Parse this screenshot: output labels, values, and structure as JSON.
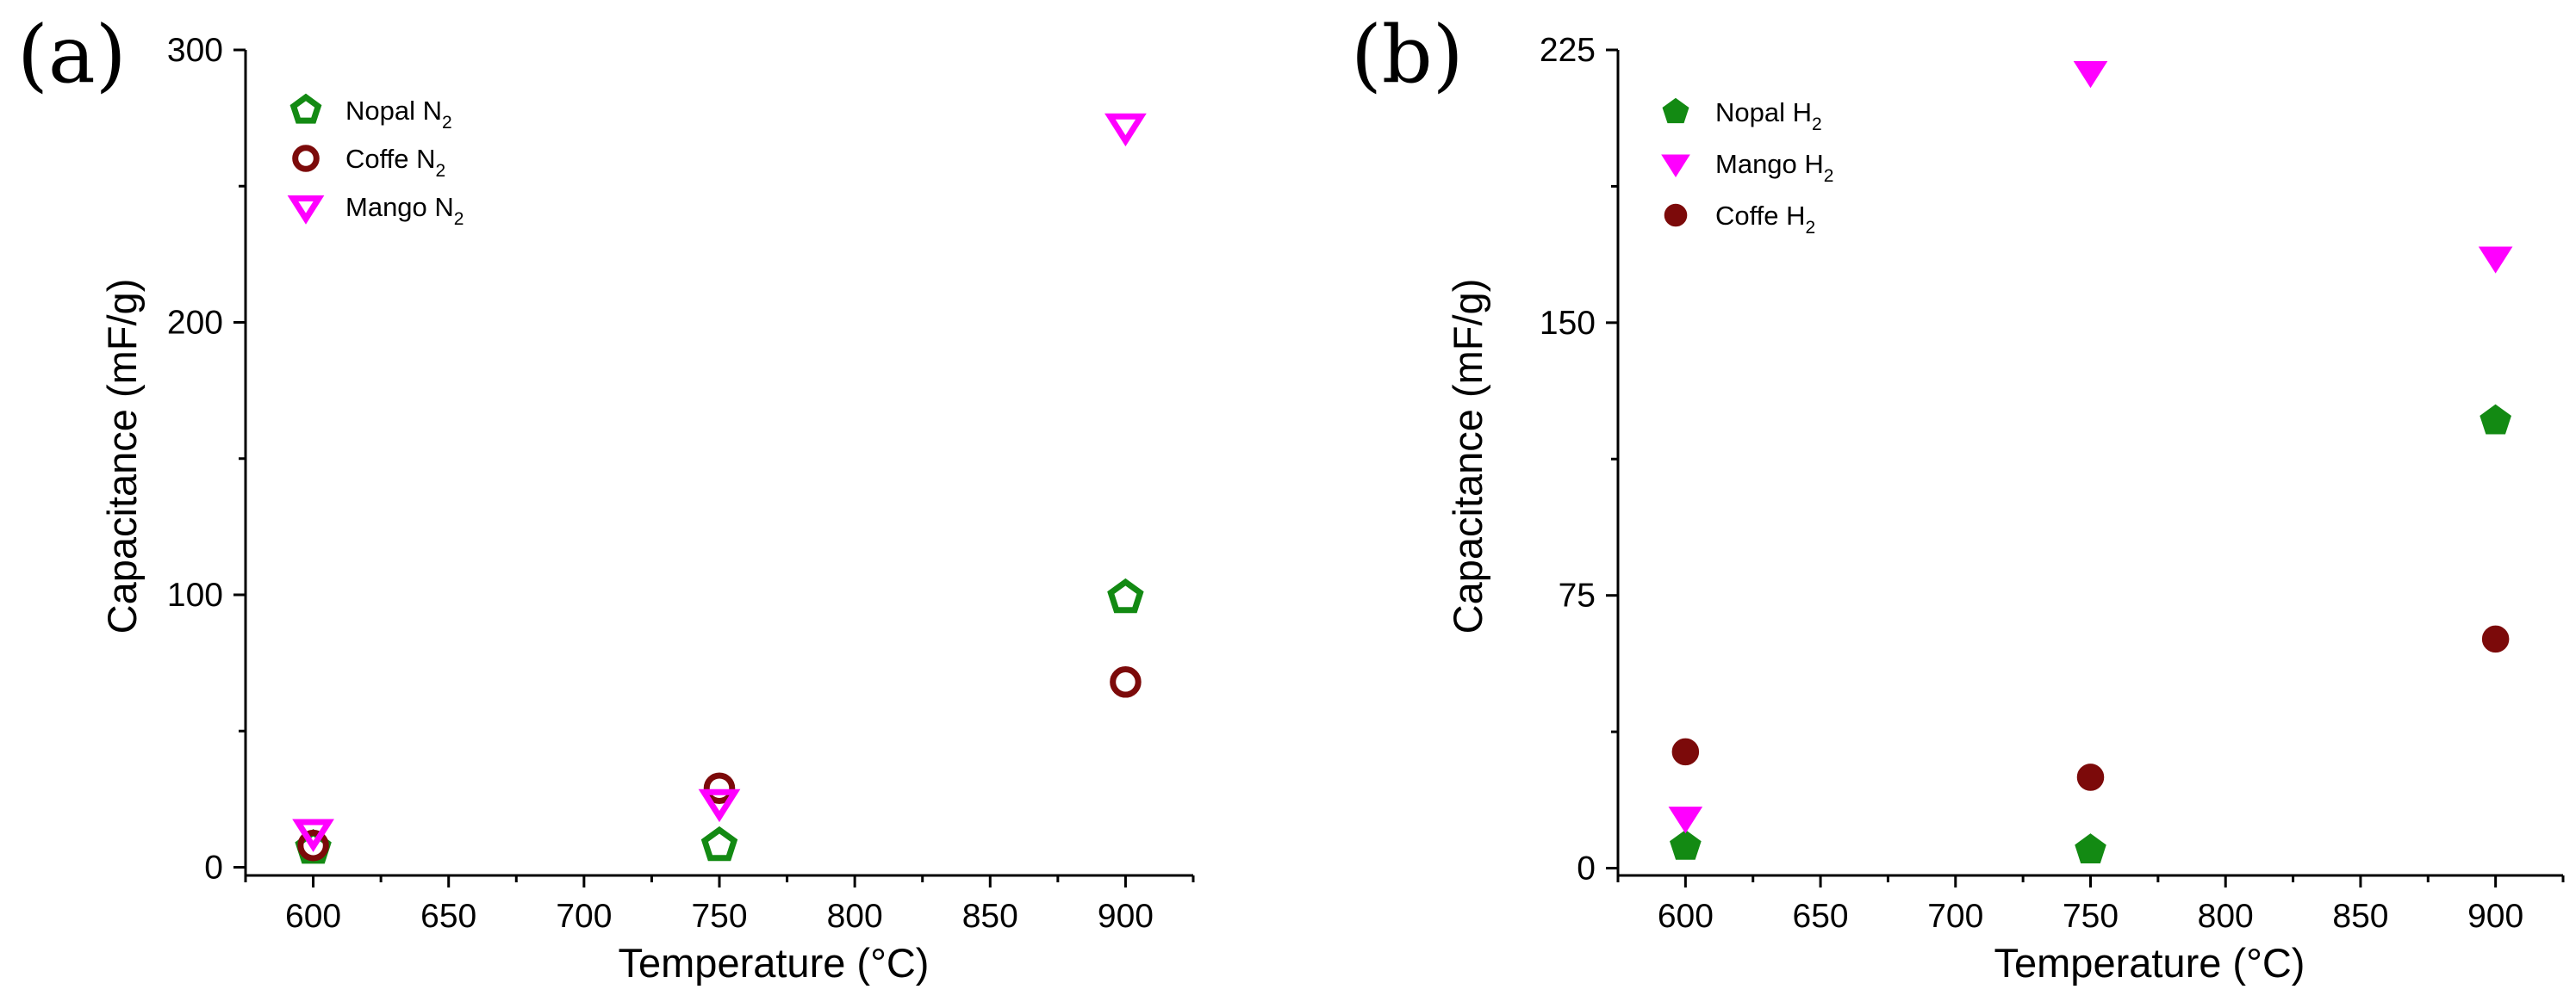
{
  "chart_data": [
    {
      "type": "scatter",
      "panel_label": "(a)",
      "xlabel": "Temperature (°C)",
      "ylabel": "Capacitance (mF/g)",
      "xlim": [
        575,
        925
      ],
      "ylim": [
        -3,
        300
      ],
      "x_ticks": [
        600,
        650,
        700,
        750,
        800,
        850,
        900
      ],
      "y_ticks": [
        0,
        100,
        200,
        300
      ],
      "legend_position": "top-left",
      "series": [
        {
          "name": "Nopal",
          "gas": "N",
          "gas_sub": "2",
          "marker": "pentagon",
          "filled": false,
          "color": "#138a13",
          "x": [
            600,
            750,
            900
          ],
          "y": [
            7,
            8,
            99
          ]
        },
        {
          "name": "Coffe",
          "gas": "N",
          "gas_sub": "2",
          "marker": "circle",
          "filled": false,
          "color": "#7c0a0a",
          "x": [
            600,
            750,
            900
          ],
          "y": [
            8,
            29,
            68
          ]
        },
        {
          "name": "Mango",
          "gas": "N",
          "gas_sub": "2",
          "marker": "triangle-down",
          "filled": false,
          "color": "#ff00ff",
          "x": [
            600,
            750,
            900
          ],
          "y": [
            13,
            24,
            272
          ]
        }
      ]
    },
    {
      "type": "scatter",
      "panel_label": "(b)",
      "xlabel": "Temperature (°C)",
      "ylabel": "Capacitance (mF/g)",
      "xlim": [
        575,
        925
      ],
      "ylim": [
        -2,
        225
      ],
      "x_ticks": [
        600,
        650,
        700,
        750,
        800,
        850,
        900
      ],
      "y_ticks": [
        0,
        75,
        150,
        225
      ],
      "legend_position": "top-left",
      "series": [
        {
          "name": "Nopal",
          "gas": "H",
          "gas_sub": "2",
          "marker": "pentagon",
          "filled": true,
          "color": "#138a13",
          "x": [
            600,
            750,
            900
          ],
          "y": [
            6,
            5,
            123
          ]
        },
        {
          "name": "Mango",
          "gas": "H",
          "gas_sub": "2",
          "marker": "triangle-down",
          "filled": true,
          "color": "#ff00ff",
          "x": [
            600,
            750,
            900
          ],
          "y": [
            14,
            219,
            168
          ]
        },
        {
          "name": "Coffe",
          "gas": "H",
          "gas_sub": "2",
          "marker": "circle",
          "filled": true,
          "color": "#7c0a0a",
          "x": [
            600,
            750,
            900
          ],
          "y": [
            32,
            25,
            63
          ]
        }
      ]
    }
  ]
}
